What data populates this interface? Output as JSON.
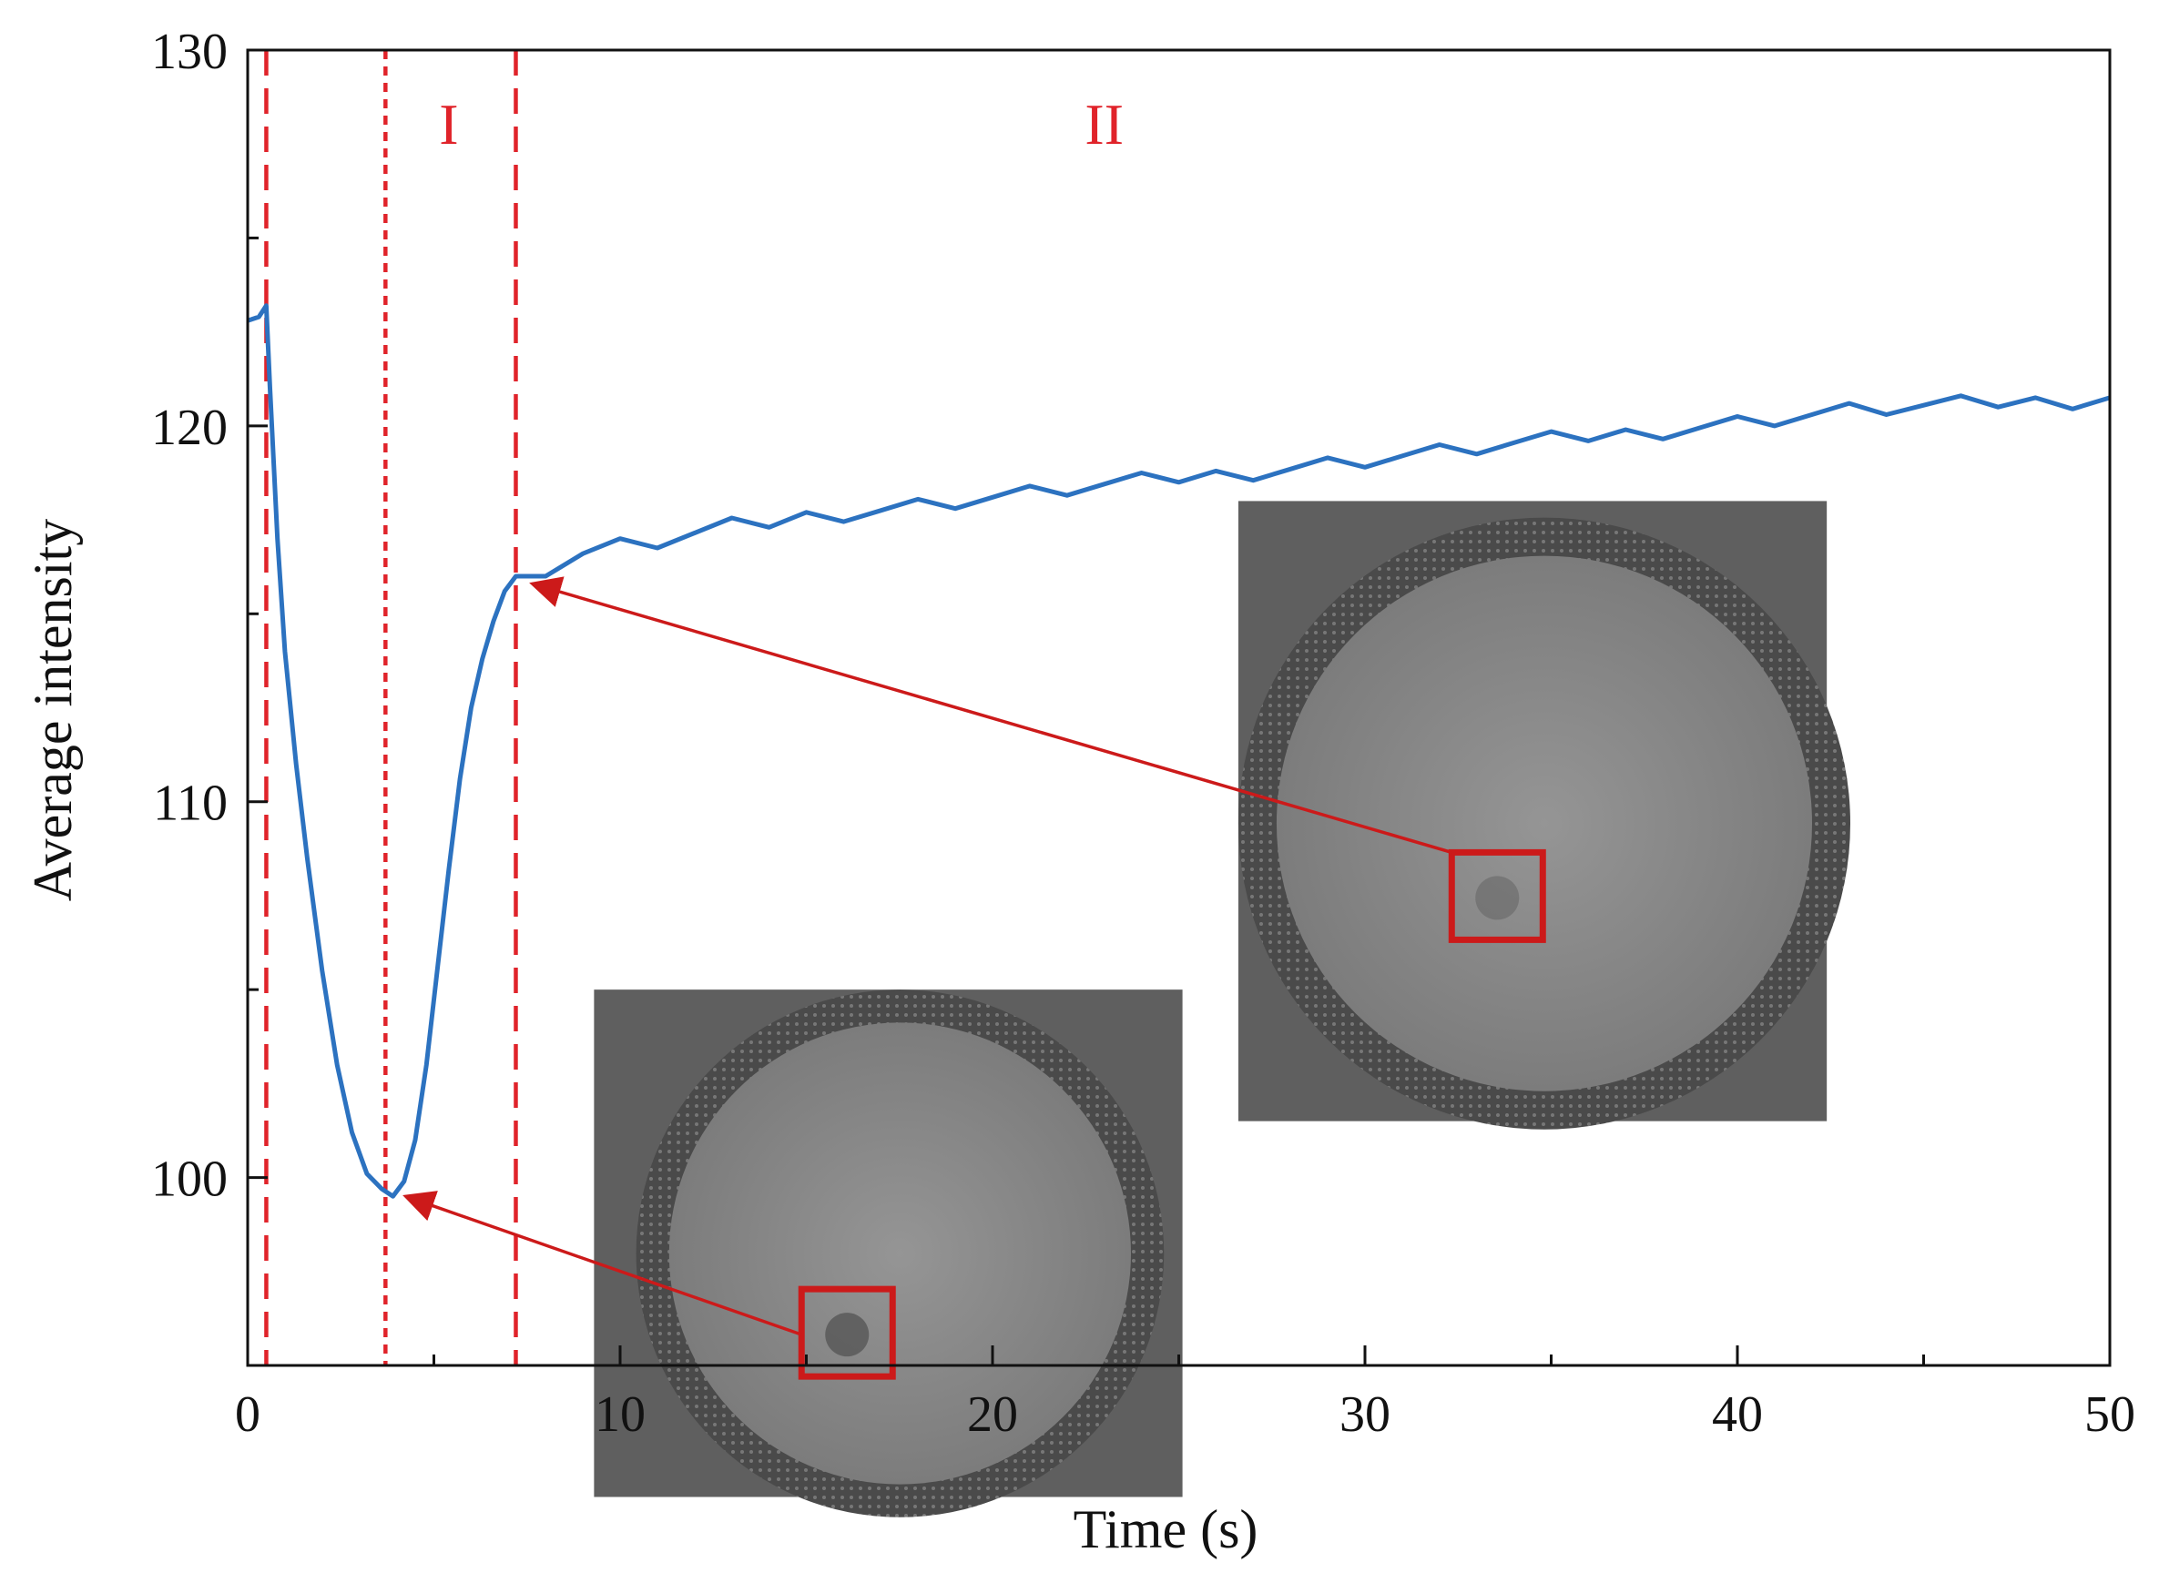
{
  "colors": {
    "series": "#2c72c0",
    "marker": "#e0232a",
    "callout": "#cc1a1a",
    "axis": "#111111",
    "inset_bg": "#5f5f5f",
    "inset_disc": "#8a8a8a",
    "inset_spot": "#5c5c5c"
  },
  "chart_data": {
    "type": "line",
    "title": "",
    "xlabel": "Time (s)",
    "ylabel": "Average intensity",
    "xlim": [
      0,
      50
    ],
    "ylim": [
      95,
      130
    ],
    "x_ticks": [
      0,
      10,
      20,
      30,
      40,
      50
    ],
    "y_ticks": [
      100,
      110,
      120,
      130
    ],
    "x_minor_step": 5,
    "y_minor_step": 5,
    "grid": false,
    "series": [
      {
        "name": "Average intensity",
        "points": [
          [
            0,
            122.8
          ],
          [
            0.3,
            122.9
          ],
          [
            0.5,
            123.2
          ],
          [
            0.6,
            121.0
          ],
          [
            0.8,
            117.0
          ],
          [
            1.0,
            114.0
          ],
          [
            1.3,
            111.0
          ],
          [
            1.6,
            108.5
          ],
          [
            2.0,
            105.5
          ],
          [
            2.4,
            103.0
          ],
          [
            2.8,
            101.2
          ],
          [
            3.2,
            100.1
          ],
          [
            3.6,
            99.7
          ],
          [
            3.9,
            99.5
          ],
          [
            4.2,
            99.9
          ],
          [
            4.5,
            101.0
          ],
          [
            4.8,
            103.0
          ],
          [
            5.1,
            105.6
          ],
          [
            5.4,
            108.2
          ],
          [
            5.7,
            110.6
          ],
          [
            6.0,
            112.5
          ],
          [
            6.3,
            113.8
          ],
          [
            6.6,
            114.8
          ],
          [
            6.9,
            115.6
          ],
          [
            7.2,
            116.0
          ],
          [
            8,
            116.2
          ],
          [
            9,
            116.6
          ],
          [
            10,
            116.8
          ],
          [
            11,
            116.9
          ],
          [
            12,
            117.1
          ],
          [
            13,
            117.3
          ],
          [
            14,
            117.4
          ],
          [
            15,
            117.6
          ],
          [
            16,
            117.7
          ],
          [
            17,
            117.8
          ],
          [
            18,
            117.9
          ],
          [
            19,
            118.0
          ],
          [
            20,
            118.1
          ],
          [
            21,
            118.2
          ],
          [
            22,
            118.3
          ],
          [
            23,
            118.4
          ],
          [
            24,
            118.5
          ],
          [
            25,
            118.6
          ],
          [
            26,
            118.7
          ],
          [
            27,
            118.8
          ],
          [
            28,
            118.9
          ],
          [
            29,
            119.0
          ],
          [
            30,
            119.1
          ],
          [
            31,
            119.2
          ],
          [
            32,
            119.3
          ],
          [
            33,
            119.4
          ],
          [
            34,
            119.5
          ],
          [
            35,
            119.6
          ],
          [
            36,
            119.7
          ],
          [
            37,
            119.8
          ],
          [
            38,
            119.9
          ],
          [
            39,
            120.0
          ],
          [
            40,
            120.1
          ],
          [
            41,
            120.2
          ],
          [
            42,
            120.3
          ],
          [
            43,
            120.4
          ],
          [
            44,
            120.45
          ],
          [
            45,
            120.5
          ],
          [
            46,
            120.55
          ],
          [
            47,
            120.6
          ],
          [
            48,
            120.65
          ],
          [
            49,
            120.7
          ],
          [
            50,
            120.8
          ]
        ]
      }
    ],
    "vertical_markers": [
      {
        "x": 0.5,
        "style": "long-dash"
      },
      {
        "x": 3.7,
        "style": "short-dash"
      },
      {
        "x": 7.2,
        "style": "long-dash"
      }
    ],
    "regions": [
      {
        "label": "I",
        "x": 5.4,
        "y": 127.5
      },
      {
        "label": "II",
        "x": 23.0,
        "y": 127.5
      }
    ],
    "insets": [
      {
        "name": "minimum-frame",
        "x_range": [
          9.3,
          25.1
        ],
        "y_range": [
          91.5,
          105.0
        ],
        "box_at": [
          0.43,
          0.68
        ],
        "arrow_to": [
          3.8,
          99.5
        ]
      },
      {
        "name": "recovery-frame",
        "x_range": [
          26.6,
          42.4
        ],
        "y_range": [
          101.5,
          118.0
        ],
        "box_at": [
          0.44,
          0.64
        ],
        "arrow_to": [
          7.2,
          115.8
        ]
      }
    ]
  }
}
